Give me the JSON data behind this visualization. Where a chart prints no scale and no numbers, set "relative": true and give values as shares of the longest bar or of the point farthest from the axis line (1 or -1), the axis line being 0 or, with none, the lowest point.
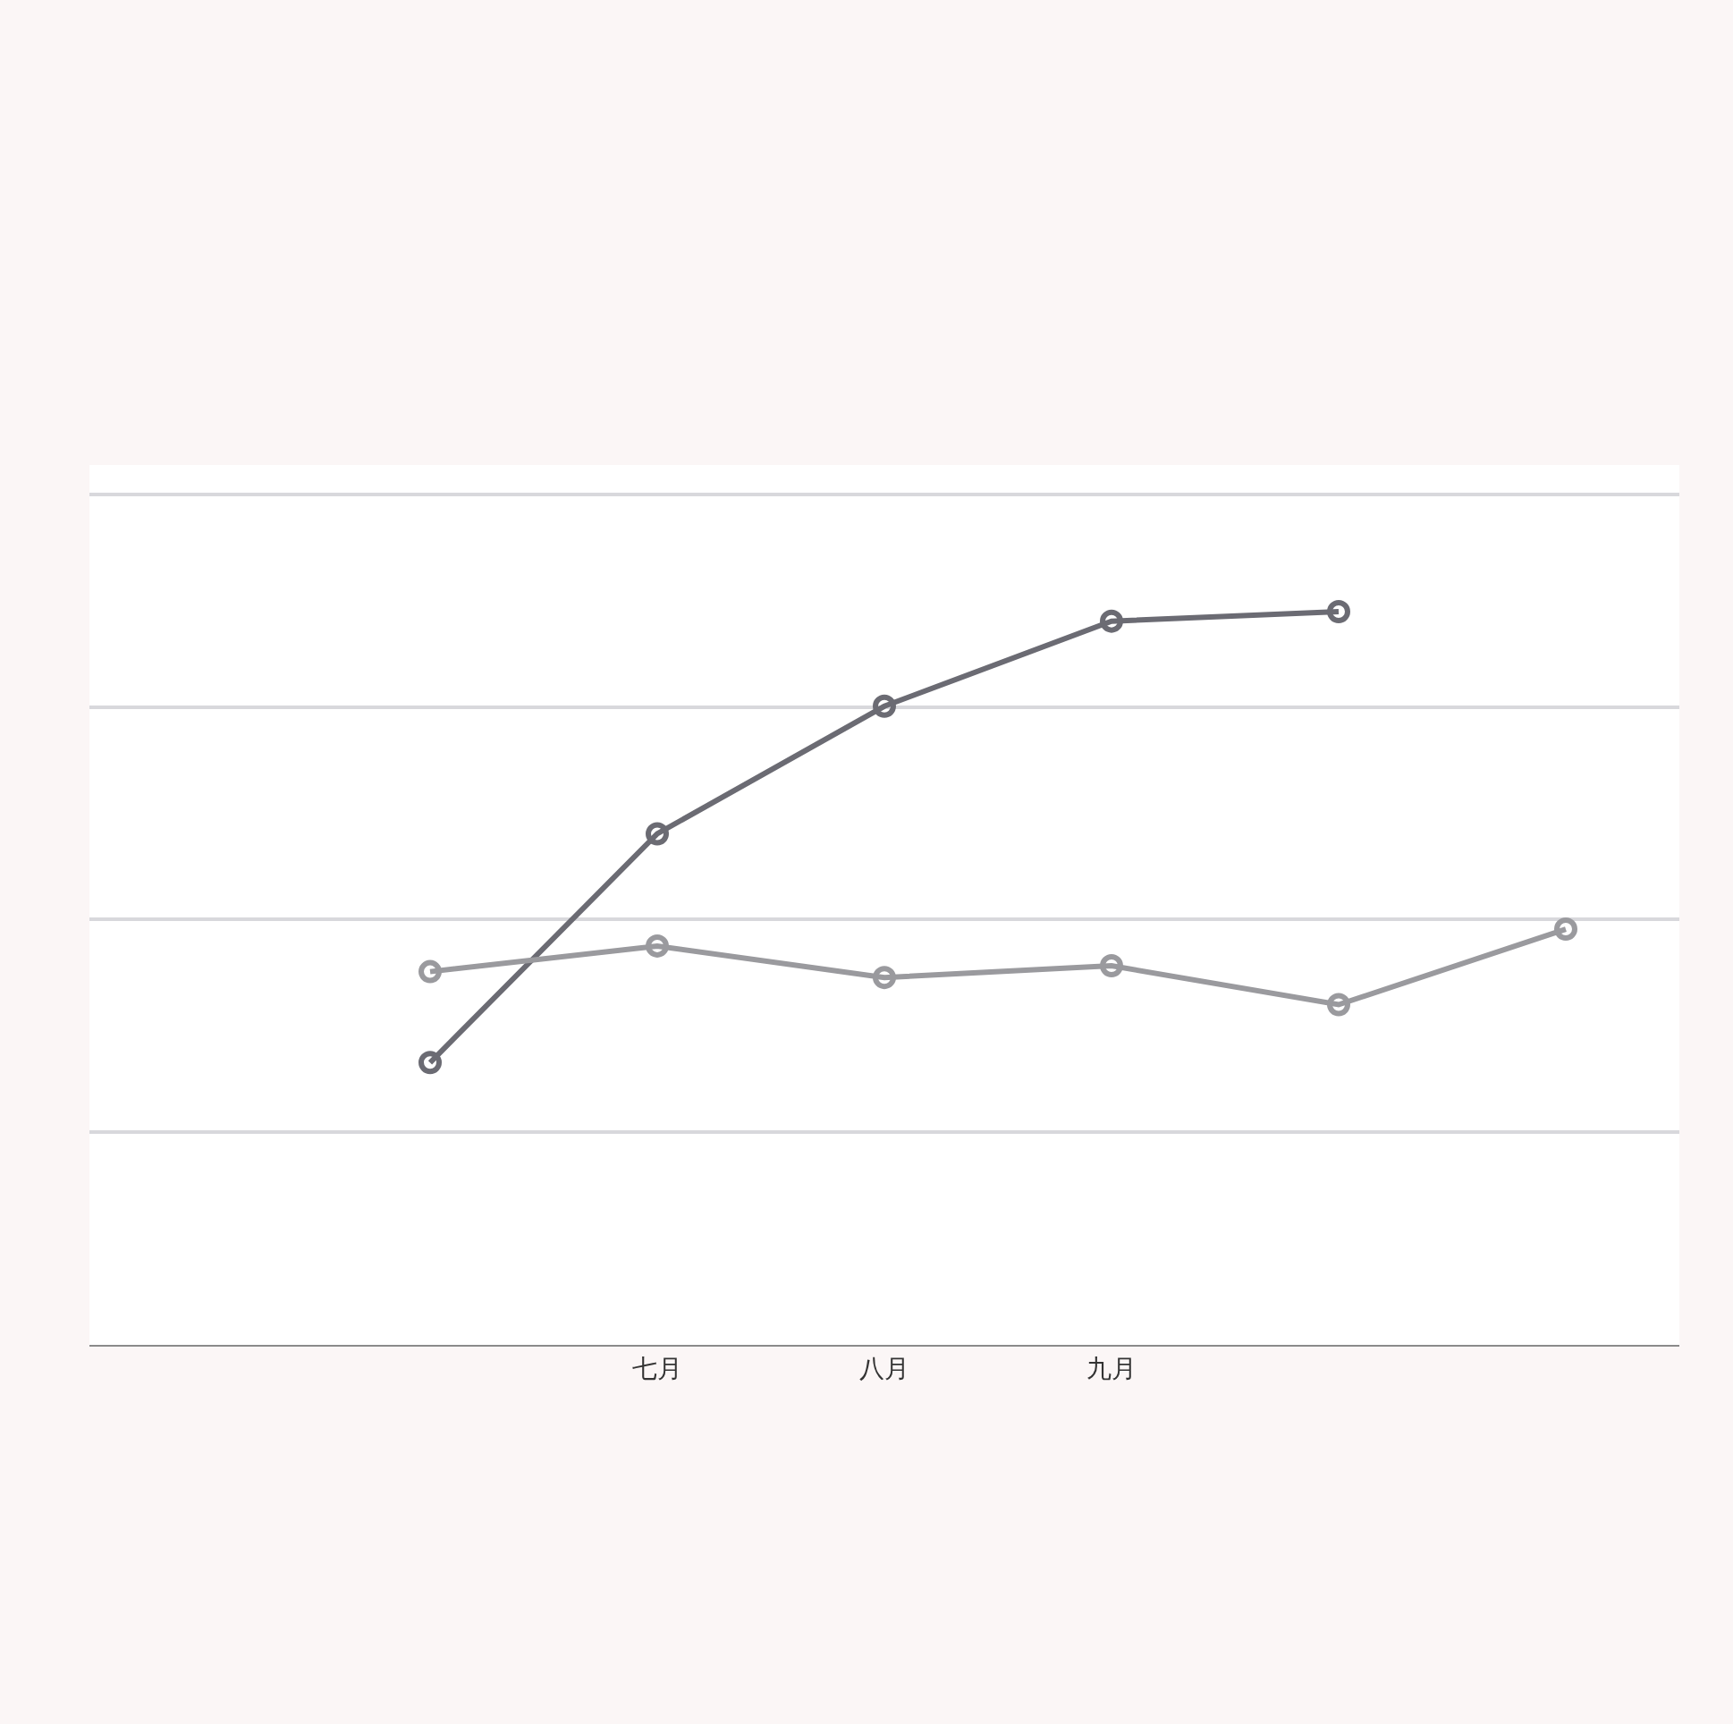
{
  "chart_data": {
    "type": "line",
    "relative": true,
    "categories": [
      null,
      null,
      "七月",
      "八月",
      "九月",
      null,
      null
    ],
    "series": [
      {
        "color": "#6b6b73",
        "values": [
          null,
          0.385,
          0.697,
          0.871,
          0.987,
          1,
          null
        ]
      },
      {
        "color": "#9a9a9e",
        "values": [
          null,
          0.509,
          0.544,
          0.501,
          0.517,
          0.464,
          0.567
        ]
      }
    ],
    "marker": "circle",
    "line_style": "solid",
    "grid": "y"
  }
}
